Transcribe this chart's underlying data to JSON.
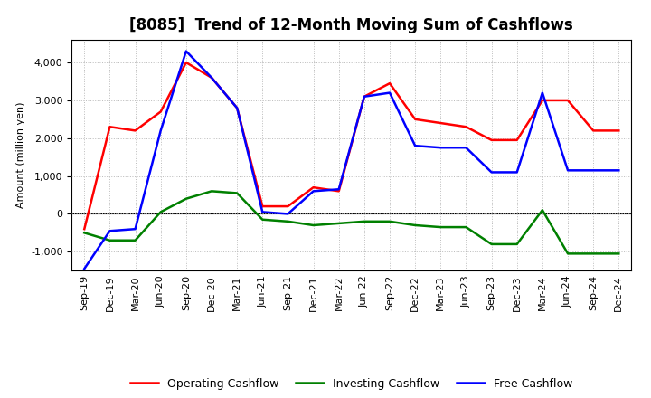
{
  "title": "[8085]  Trend of 12-Month Moving Sum of Cashflows",
  "ylabel": "Amount (million yen)",
  "background_color": "#ffffff",
  "plot_background_color": "#ffffff",
  "grid_color": "#bbbbbb",
  "labels": [
    "Sep-19",
    "Dec-19",
    "Mar-20",
    "Jun-20",
    "Sep-20",
    "Dec-20",
    "Mar-21",
    "Jun-21",
    "Sep-21",
    "Dec-21",
    "Mar-22",
    "Jun-22",
    "Sep-22",
    "Dec-22",
    "Mar-23",
    "Jun-23",
    "Sep-23",
    "Dec-23",
    "Mar-24",
    "Jun-24",
    "Sep-24",
    "Dec-24"
  ],
  "operating": [
    -400,
    2300,
    2200,
    2700,
    4000,
    3600,
    2800,
    200,
    200,
    700,
    600,
    3100,
    3450,
    2500,
    2400,
    2300,
    1950,
    1950,
    3000,
    3000,
    2200,
    2200
  ],
  "investing": [
    -500,
    -700,
    -700,
    50,
    400,
    600,
    550,
    -150,
    -200,
    -300,
    -250,
    -200,
    -200,
    -300,
    -350,
    -350,
    -800,
    -800,
    100,
    -1050,
    -1050,
    -1050
  ],
  "free": [
    -1450,
    -450,
    -400,
    2200,
    4300,
    3600,
    2800,
    50,
    0,
    600,
    650,
    3100,
    3200,
    1800,
    1750,
    1750,
    1100,
    1100,
    3200,
    1150,
    1150,
    1150
  ],
  "operating_color": "#ff0000",
  "investing_color": "#008000",
  "free_color": "#0000ff",
  "ylim": [
    -1500,
    4600
  ],
  "yticks": [
    -1000,
    0,
    1000,
    2000,
    3000,
    4000
  ],
  "linewidth": 1.8,
  "title_fontsize": 12,
  "legend_fontsize": 9,
  "tick_fontsize": 8
}
